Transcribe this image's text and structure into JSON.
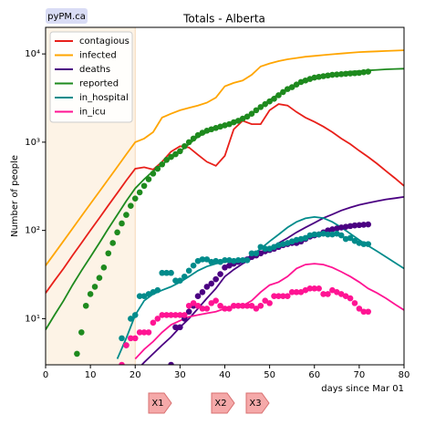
{
  "badge": "pyPM.ca",
  "chart_data": {
    "type": "line",
    "title": "Totals - Alberta",
    "xlabel": "days since Mar 01",
    "ylabel": "Number of people",
    "ylog": true,
    "xlim": [
      0,
      80
    ],
    "ylim": [
      3,
      20000
    ],
    "xticks": [
      0,
      10,
      20,
      30,
      40,
      50,
      60,
      70,
      80
    ],
    "yticks": [
      {
        "value": 10,
        "label": "10¹"
      },
      {
        "value": 100,
        "label": "10²"
      },
      {
        "value": 1000,
        "label": "10³"
      },
      {
        "value": 10000,
        "label": "10⁴"
      }
    ],
    "legend": "upper left",
    "shaded_x": [
      0,
      20
    ],
    "shade_color": "#fdf3e6",
    "x": [
      0,
      2,
      4,
      6,
      8,
      10,
      12,
      14,
      16,
      18,
      20,
      22,
      24,
      26,
      28,
      30,
      32,
      34,
      36,
      38,
      40,
      42,
      44,
      46,
      48,
      50,
      52,
      54,
      56,
      58,
      60,
      62,
      64,
      66,
      68,
      70,
      72,
      74,
      76,
      78,
      80
    ],
    "series": [
      {
        "name": "contagious",
        "color": "#e8201a",
        "values": [
          19.5,
          27,
          37,
          52,
          72,
          100,
          138,
          192,
          265,
          367,
          500,
          520,
          490,
          600,
          780,
          900,
          870,
          720,
          600,
          540,
          700,
          1400,
          1750,
          1600,
          1600,
          2300,
          2700,
          2600,
          2200,
          1900,
          1700,
          1500,
          1300,
          1100,
          950,
          800,
          680,
          570,
          470,
          390,
          320
        ]
      },
      {
        "name": "infected",
        "color": "#ffa500",
        "values": [
          40,
          55,
          76,
          105,
          145,
          200,
          275,
          380,
          525,
          725,
          1000,
          1100,
          1300,
          1900,
          2100,
          2300,
          2450,
          2600,
          2800,
          3200,
          4300,
          4700,
          5000,
          5800,
          7200,
          7800,
          8300,
          8700,
          9000,
          9300,
          9500,
          9700,
          9900,
          10100,
          10300,
          10500,
          10600,
          10700,
          10800,
          10900,
          11000
        ]
      },
      {
        "name": "deaths",
        "color": "#4b0082",
        "values": [
          null,
          null,
          null,
          null,
          null,
          null,
          null,
          null,
          null,
          null,
          2.5,
          3.2,
          4,
          5,
          6.2,
          8,
          10,
          13,
          17,
          22,
          30,
          36,
          42,
          48,
          55,
          62,
          72,
          82,
          95,
          108,
          122,
          138,
          152,
          168,
          182,
          195,
          205,
          215,
          225,
          232,
          240
        ]
      },
      {
        "name": "reported",
        "color": "#1e8a1e",
        "values": [
          7.5,
          11,
          16,
          24,
          35,
          50,
          72,
          105,
          150,
          215,
          300,
          380,
          470,
          560,
          660,
          780,
          950,
          1150,
          1300,
          1400,
          1500,
          1650,
          1800,
          2100,
          2500,
          3000,
          3500,
          4000,
          4500,
          5000,
          5400,
          5700,
          5900,
          6100,
          6300,
          6400,
          6500,
          6600,
          6700,
          6750,
          6800
        ]
      },
      {
        "name": "in_hospital",
        "color": "#008b8b",
        "values": [
          null,
          null,
          null,
          null,
          null,
          null,
          null,
          null,
          3.5,
          6,
          11,
          16,
          19,
          21,
          23,
          26,
          30,
          35,
          39,
          42,
          44,
          44,
          46,
          52,
          62,
          75,
          90,
          108,
          125,
          137,
          142,
          138,
          125,
          108,
          92,
          78,
          67,
          58,
          50,
          43,
          37
        ]
      },
      {
        "name": "in_icu",
        "color": "#ff1493",
        "values": [
          null,
          null,
          null,
          null,
          null,
          null,
          null,
          null,
          null,
          null,
          3.5,
          4.5,
          5.5,
          7,
          8.5,
          9.5,
          10.5,
          11,
          11.5,
          12,
          13,
          13.5,
          14,
          16,
          20,
          24,
          26,
          30,
          37,
          41,
          42,
          41,
          38,
          34,
          30,
          26,
          22,
          19.5,
          17,
          14.5,
          12.5
        ]
      }
    ],
    "dots": [
      {
        "color": "#1e8a1e",
        "x": [
          7,
          8,
          9,
          10,
          11,
          12,
          13,
          14,
          15,
          16,
          17,
          18,
          19,
          20,
          21,
          22,
          23,
          24,
          25,
          26,
          27,
          28,
          29,
          30,
          31,
          32,
          33,
          34,
          35,
          36,
          37,
          38,
          39,
          40,
          41,
          42,
          43,
          44,
          45,
          46,
          47,
          48,
          49,
          50,
          51,
          52,
          53,
          54,
          55,
          56,
          57,
          58,
          59,
          60,
          61,
          62,
          63,
          64,
          65,
          66,
          67,
          68,
          69,
          70,
          71,
          72
        ],
        "values": [
          4,
          7,
          14,
          19,
          23,
          29,
          38,
          55,
          72,
          95,
          120,
          150,
          190,
          230,
          270,
          320,
          380,
          440,
          500,
          560,
          630,
          680,
          730,
          790,
          900,
          1000,
          1100,
          1200,
          1280,
          1350,
          1400,
          1450,
          1500,
          1550,
          1600,
          1680,
          1750,
          1850,
          1950,
          2100,
          2300,
          2500,
          2700,
          2900,
          3100,
          3400,
          3700,
          4000,
          4200,
          4500,
          4800,
          5000,
          5200,
          5400,
          5500,
          5600,
          5700,
          5800,
          5850,
          5900,
          5950,
          6000,
          6050,
          6100,
          6200,
          6300
        ]
      },
      {
        "color": "#4b0082",
        "x": [
          28,
          29,
          30,
          31,
          32,
          33,
          34,
          35,
          36,
          37,
          38,
          39,
          40,
          41,
          42,
          43,
          44,
          45,
          46,
          47,
          48,
          49,
          50,
          51,
          52,
          53,
          54,
          55,
          56,
          57,
          58,
          59,
          60,
          61,
          62,
          63,
          64,
          65,
          66,
          67,
          68,
          69,
          70,
          71,
          72
        ],
        "values": [
          3,
          8,
          8,
          10,
          12,
          14,
          18,
          20,
          23,
          25,
          28,
          32,
          38,
          40,
          42,
          44,
          45,
          47,
          50,
          52,
          55,
          58,
          60,
          62,
          65,
          68,
          70,
          72,
          72,
          75,
          80,
          85,
          88,
          90,
          95,
          100,
          103,
          105,
          108,
          110,
          112,
          114,
          115,
          116,
          117
        ]
      },
      {
        "color": "#008b8b",
        "x": [
          17,
          18,
          19,
          20,
          21,
          22,
          23,
          24,
          25,
          26,
          27,
          28,
          29,
          30,
          31,
          32,
          33,
          34,
          35,
          36,
          37,
          38,
          39,
          40,
          41,
          42,
          43,
          44,
          45,
          46,
          47,
          48,
          49,
          50,
          51,
          52,
          53,
          54,
          55,
          56,
          57,
          58,
          59,
          60,
          61,
          62,
          63,
          64,
          65,
          66,
          67,
          68,
          69,
          70,
          71,
          72
        ],
        "values": [
          6,
          5,
          10,
          11,
          18,
          18,
          19,
          20,
          21,
          33,
          33,
          33,
          27,
          27,
          30,
          35,
          40,
          45,
          47,
          47,
          44,
          45,
          44,
          46,
          46,
          45,
          46,
          46,
          46,
          55,
          55,
          65,
          62,
          62,
          65,
          68,
          70,
          72,
          75,
          78,
          80,
          82,
          88,
          90,
          90,
          92,
          90,
          90,
          92,
          88,
          80,
          82,
          76,
          72,
          70,
          70
        ]
      },
      {
        "color": "#ff1493",
        "x": [
          17,
          18,
          19,
          20,
          21,
          22,
          23,
          24,
          25,
          26,
          27,
          28,
          29,
          30,
          31,
          32,
          33,
          34,
          35,
          36,
          37,
          38,
          39,
          40,
          41,
          42,
          43,
          44,
          45,
          46,
          47,
          48,
          49,
          50,
          51,
          52,
          53,
          54,
          55,
          56,
          57,
          58,
          59,
          60,
          61,
          62,
          63,
          64,
          65,
          66,
          67,
          68,
          69,
          70,
          71,
          72
        ],
        "values": [
          3,
          5,
          6,
          6,
          7,
          7,
          7,
          9,
          10,
          11,
          11,
          11,
          11,
          11,
          11,
          14,
          15,
          14,
          13,
          13,
          15,
          16,
          14,
          13,
          13,
          14,
          14,
          14,
          14,
          14,
          13,
          14,
          16,
          15,
          18,
          18,
          18,
          18,
          20,
          20,
          20,
          21,
          22,
          22,
          22,
          19,
          19,
          21,
          20,
          19,
          18,
          17,
          15,
          13,
          12,
          12
        ]
      }
    ]
  },
  "buttons": [
    "X1",
    "X2",
    "X3"
  ]
}
